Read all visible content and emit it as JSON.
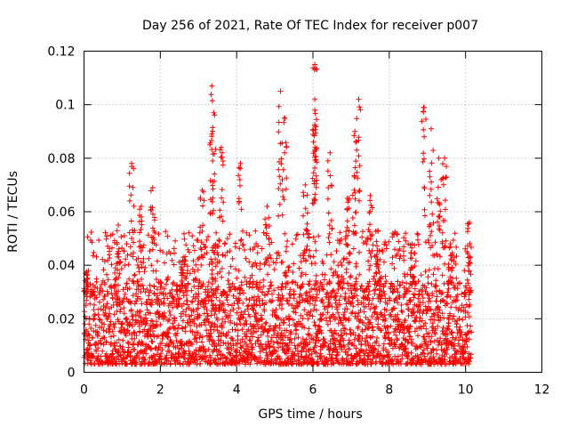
{
  "chart_data": {
    "type": "scatter",
    "title": "Day 256 of 2021, Rate Of TEC Index for receiver p007",
    "xlabel": "GPS time / hours",
    "ylabel": "ROTI / TECUs",
    "xlim": [
      0,
      12
    ],
    "ylim": [
      0,
      0.12
    ],
    "x_ticks": [
      0,
      2,
      4,
      6,
      8,
      10,
      12
    ],
    "x_tick_labels": [
      "0",
      "2",
      "4",
      "6",
      "8",
      "10",
      "12"
    ],
    "y_ticks": [
      0,
      0.02,
      0.04,
      0.06,
      0.08,
      0.1,
      0.12
    ],
    "y_tick_labels": [
      "0",
      "0.02",
      "0.04",
      "0.06",
      "0.08",
      "0.1",
      "0.12"
    ],
    "grid": true,
    "marker": "+",
    "series": [
      {
        "name": "ROTI",
        "color": "#ff0000",
        "sampling": "dense scatter, approx. 0 to 10.15 hours; baseline ~0.003–0.03 TECU with frequent spikes",
        "x_range": [
          0,
          10.15
        ],
        "baseline_range": [
          0.003,
          0.03
        ],
        "notable_points": [
          {
            "x": 0.05,
            "y": 0.037
          },
          {
            "x": 0.9,
            "y": 0.055
          },
          {
            "x": 1.25,
            "y": 0.078
          },
          {
            "x": 1.5,
            "y": 0.062
          },
          {
            "x": 1.8,
            "y": 0.069
          },
          {
            "x": 2.6,
            "y": 0.043
          },
          {
            "x": 3.1,
            "y": 0.068
          },
          {
            "x": 3.35,
            "y": 0.107
          },
          {
            "x": 3.4,
            "y": 0.097
          },
          {
            "x": 3.6,
            "y": 0.084
          },
          {
            "x": 4.1,
            "y": 0.078
          },
          {
            "x": 4.8,
            "y": 0.062
          },
          {
            "x": 5.15,
            "y": 0.105
          },
          {
            "x": 5.25,
            "y": 0.095
          },
          {
            "x": 5.8,
            "y": 0.07
          },
          {
            "x": 6.05,
            "y": 0.115
          },
          {
            "x": 6.05,
            "y": 0.102
          },
          {
            "x": 6.05,
            "y": 0.098
          },
          {
            "x": 6.45,
            "y": 0.082
          },
          {
            "x": 6.9,
            "y": 0.065
          },
          {
            "x": 7.1,
            "y": 0.09
          },
          {
            "x": 7.2,
            "y": 0.102
          },
          {
            "x": 7.5,
            "y": 0.066
          },
          {
            "x": 7.7,
            "y": 0.053
          },
          {
            "x": 8.6,
            "y": 0.048
          },
          {
            "x": 8.9,
            "y": 0.099
          },
          {
            "x": 9.1,
            "y": 0.091
          },
          {
            "x": 9.3,
            "y": 0.08
          },
          {
            "x": 9.45,
            "y": 0.08
          },
          {
            "x": 9.6,
            "y": 0.048
          },
          {
            "x": 10.1,
            "y": 0.056
          }
        ]
      }
    ]
  }
}
